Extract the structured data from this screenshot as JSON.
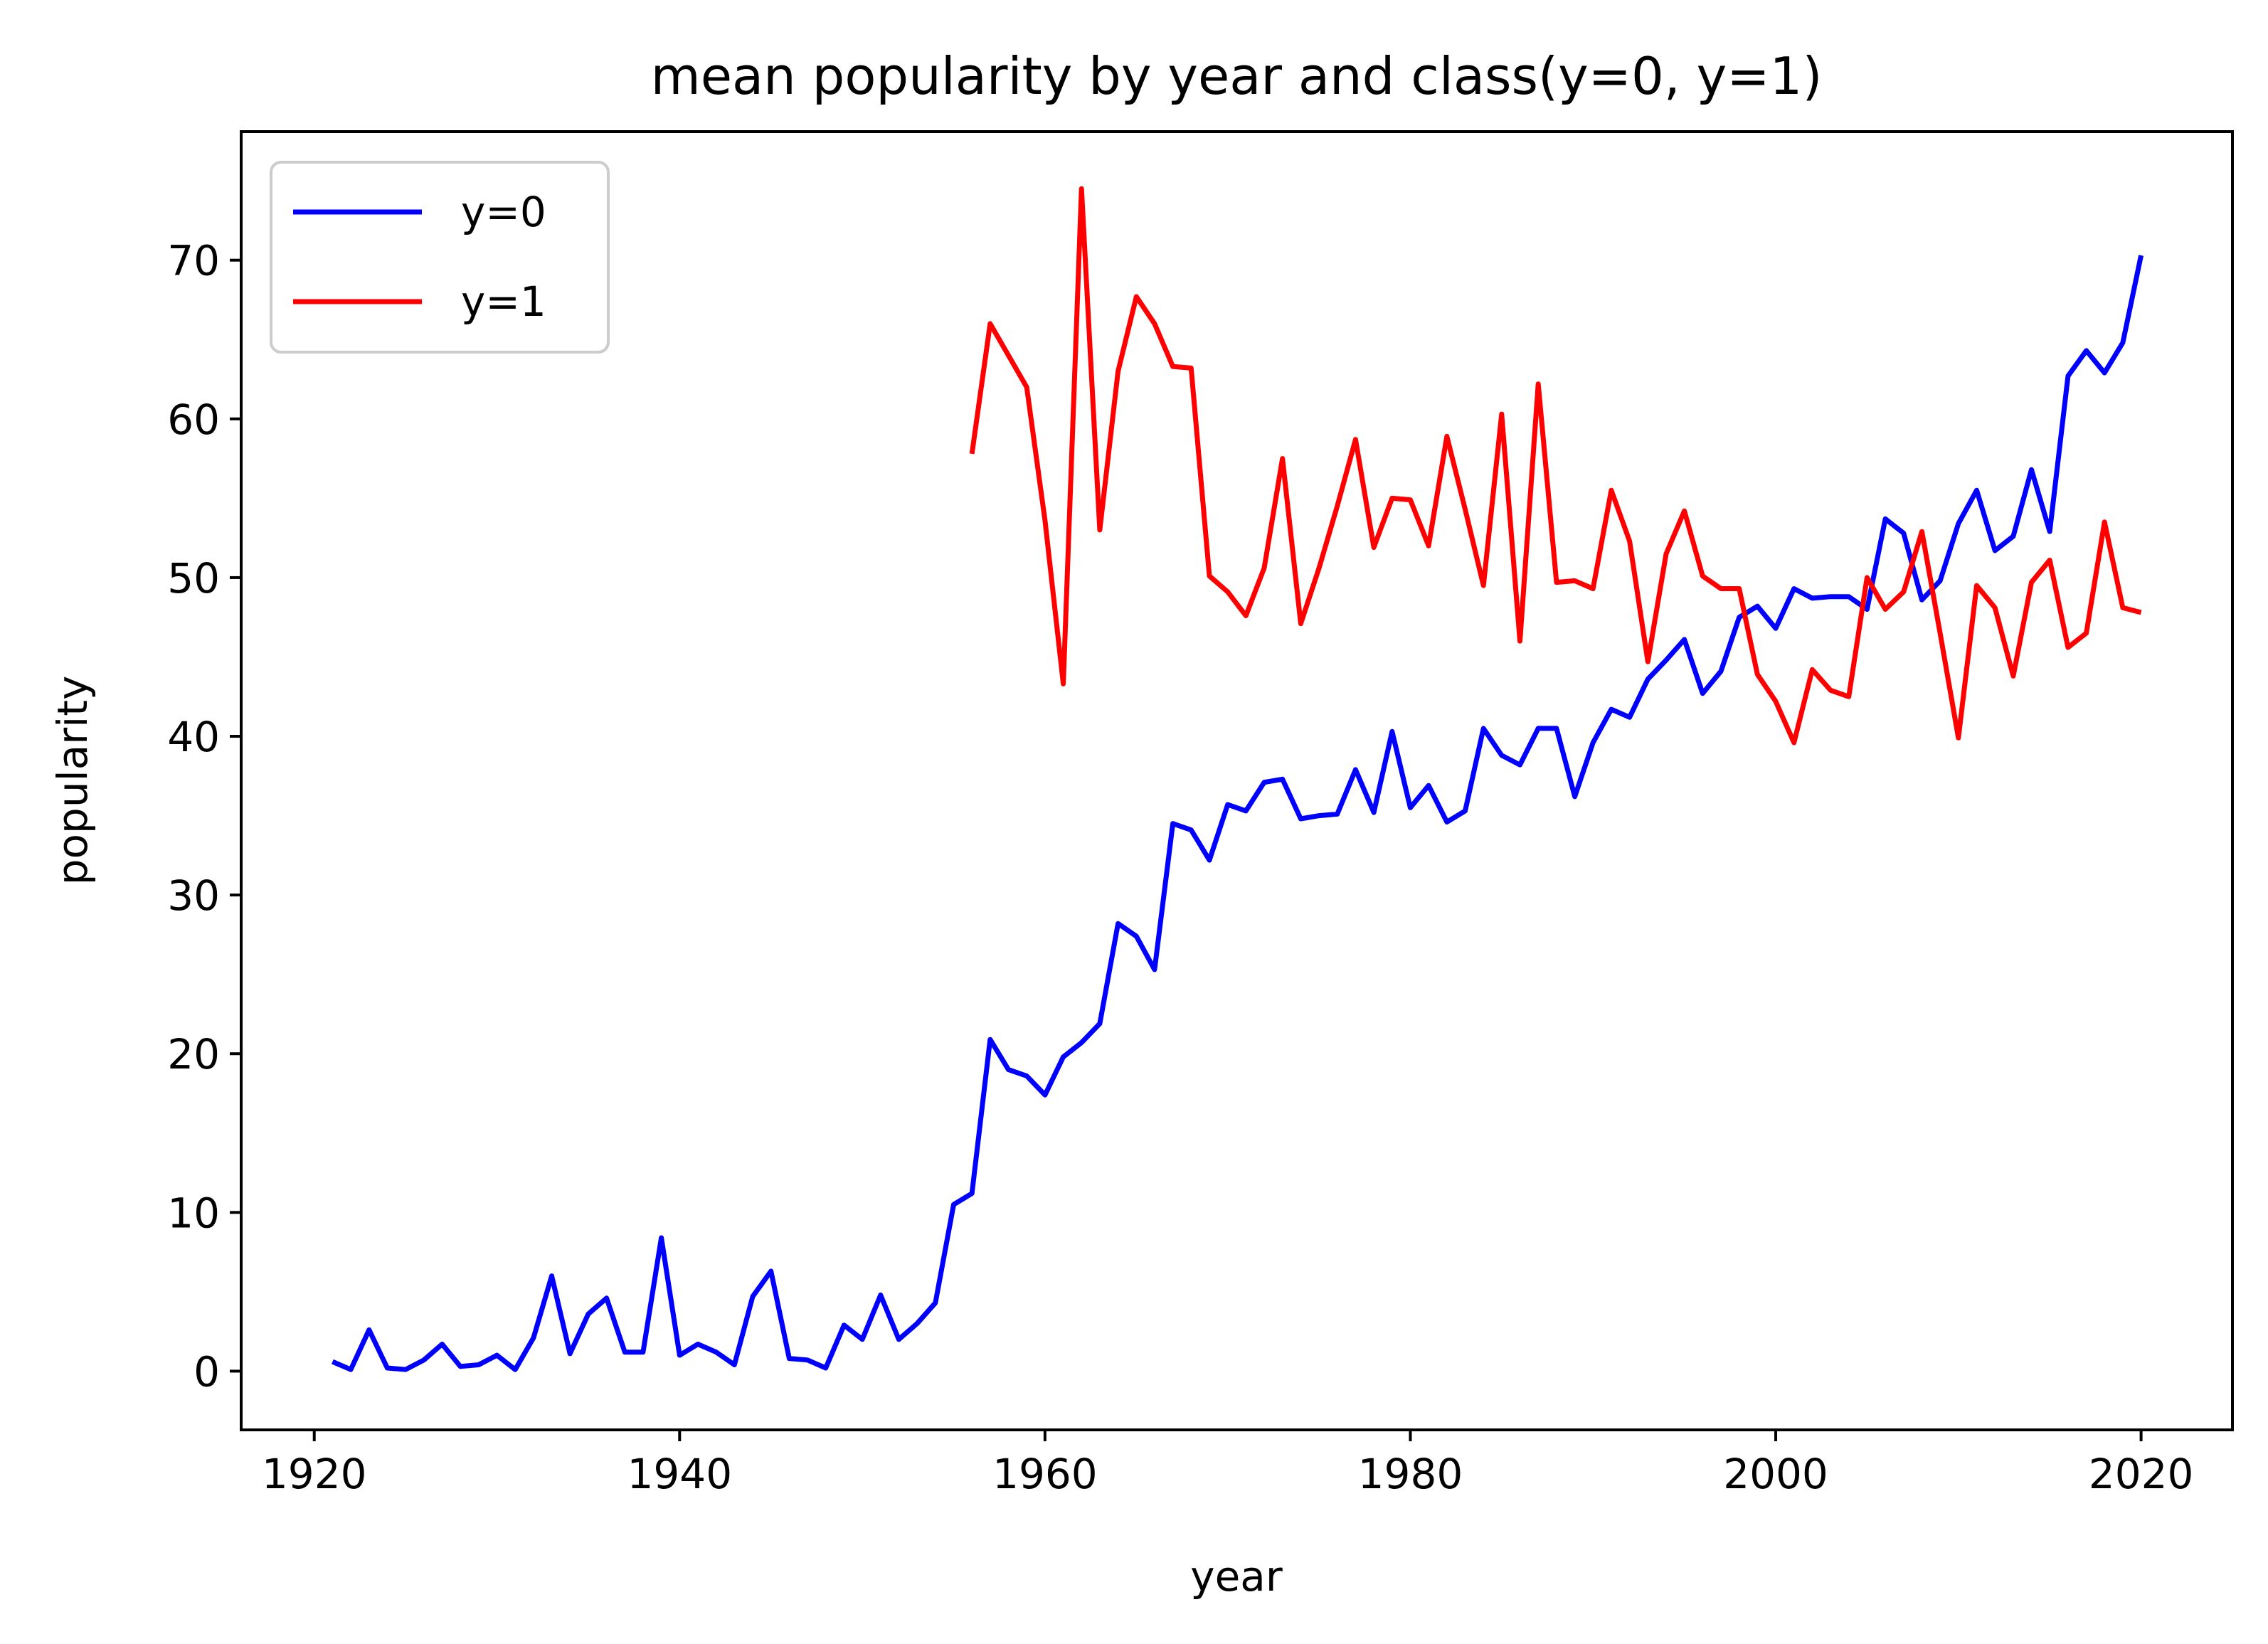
{
  "chart_data": {
    "type": "line",
    "title": "mean popularity by year and class(y=0, y=1)",
    "xlabel": "year",
    "ylabel": "popularity",
    "xlim": [
      1916,
      2025
    ],
    "ylim": [
      -3.7,
      78.1
    ],
    "xticks": [
      1920,
      1940,
      1960,
      1980,
      2000,
      2020
    ],
    "yticks": [
      0,
      10,
      20,
      30,
      40,
      50,
      60,
      70
    ],
    "grid": false,
    "legend_position": "upper left",
    "series": [
      {
        "name": "y=0",
        "color": "#0000ff",
        "x": [
          1921,
          1922,
          1923,
          1924,
          1925,
          1926,
          1927,
          1928,
          1929,
          1930,
          1931,
          1932,
          1933,
          1934,
          1935,
          1936,
          1937,
          1938,
          1939,
          1940,
          1941,
          1942,
          1943,
          1944,
          1945,
          1946,
          1947,
          1948,
          1949,
          1950,
          1951,
          1952,
          1953,
          1954,
          1955,
          1956,
          1957,
          1958,
          1959,
          1960,
          1961,
          1962,
          1963,
          1964,
          1965,
          1966,
          1967,
          1968,
          1969,
          1970,
          1971,
          1972,
          1973,
          1974,
          1975,
          1976,
          1977,
          1978,
          1979,
          1980,
          1981,
          1982,
          1983,
          1984,
          1985,
          1986,
          1987,
          1988,
          1989,
          1990,
          1991,
          1992,
          1993,
          1994,
          1995,
          1996,
          1997,
          1998,
          1999,
          2000,
          2001,
          2002,
          2003,
          2004,
          2005,
          2006,
          2007,
          2008,
          2009,
          2010,
          2011,
          2012,
          2013,
          2014,
          2015,
          2016,
          2017,
          2018,
          2019,
          2020
        ],
        "y": [
          0.6,
          0.1,
          2.6,
          0.2,
          0.1,
          0.7,
          1.7,
          0.3,
          0.4,
          1.0,
          0.1,
          2.1,
          6.0,
          1.1,
          3.6,
          4.6,
          1.2,
          1.2,
          8.4,
          1.0,
          1.7,
          1.2,
          0.4,
          4.7,
          6.3,
          0.8,
          0.7,
          0.2,
          2.9,
          2.0,
          4.8,
          2.0,
          3.0,
          4.3,
          10.5,
          11.2,
          20.9,
          19.0,
          18.6,
          17.4,
          19.8,
          20.7,
          21.9,
          28.2,
          27.4,
          25.3,
          34.5,
          34.1,
          32.2,
          35.7,
          35.3,
          37.1,
          37.3,
          34.8,
          35.0,
          35.1,
          37.9,
          35.2,
          40.3,
          35.5,
          36.9,
          34.6,
          35.3,
          40.5,
          38.8,
          38.2,
          40.5,
          40.5,
          36.2,
          39.6,
          41.7,
          41.2,
          43.6,
          44.8,
          46.1,
          42.7,
          44.1,
          47.5,
          48.2,
          46.8,
          49.3,
          48.7,
          48.8,
          48.8,
          48.0,
          53.7,
          52.8,
          48.6,
          49.8,
          53.4,
          55.5,
          51.7,
          52.6,
          56.8,
          52.9,
          62.7,
          64.3,
          62.9,
          64.8,
          70.3
        ]
      },
      {
        "name": "y=1",
        "color": "#ff0000",
        "x": [
          1956,
          1957,
          1958,
          1959,
          1960,
          1961,
          1962,
          1963,
          1964,
          1965,
          1966,
          1967,
          1968,
          1969,
          1970,
          1971,
          1972,
          1973,
          1974,
          1975,
          1976,
          1977,
          1978,
          1979,
          1980,
          1981,
          1982,
          1983,
          1984,
          1985,
          1986,
          1987,
          1988,
          1989,
          1990,
          1991,
          1992,
          1993,
          1994,
          1995,
          1996,
          1997,
          1998,
          1999,
          2000,
          2001,
          2002,
          2003,
          2004,
          2005,
          2006,
          2007,
          2008,
          2009,
          2010,
          2011,
          2012,
          2013,
          2014,
          2015,
          2016,
          2017,
          2018,
          2019,
          2020
        ],
        "y": [
          57.8,
          66.0,
          64.0,
          62.0,
          53.6,
          43.3,
          74.5,
          53.0,
          63.0,
          67.7,
          66.0,
          63.3,
          63.2,
          50.1,
          49.1,
          47.6,
          50.6,
          57.5,
          47.1,
          50.6,
          54.5,
          58.7,
          51.9,
          55.0,
          54.9,
          52.0,
          58.9,
          54.3,
          49.5,
          60.3,
          46.0,
          62.2,
          49.7,
          49.8,
          49.3,
          55.5,
          52.3,
          44.7,
          51.5,
          54.2,
          50.1,
          49.3,
          49.3,
          43.9,
          42.2,
          39.6,
          44.2,
          42.9,
          42.5,
          50.0,
          48.0,
          49.1,
          52.9,
          46.5,
          39.9,
          49.5,
          48.1,
          43.8,
          49.7,
          51.1,
          45.6,
          46.5,
          53.5,
          48.1,
          47.8
        ]
      }
    ]
  }
}
